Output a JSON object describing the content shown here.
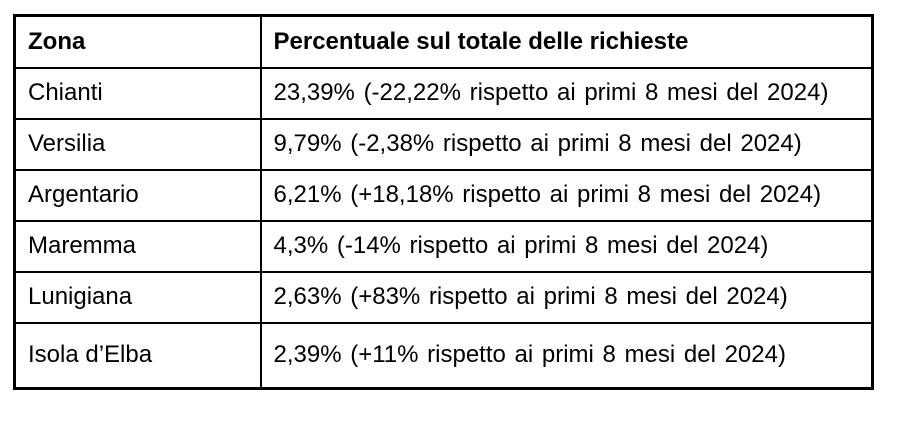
{
  "page": {
    "background": "#ffffff"
  },
  "table": {
    "colors": {
      "border": "#000000",
      "text": "#000000",
      "cell_background": "#ffffff"
    },
    "header": {
      "zona": "Zona",
      "percentuale": "Percentuale sul totale delle richieste"
    },
    "rows": [
      {
        "zona": "Chianti",
        "percentuale": "23,39% (-22,22% rispetto ai primi 8 mesi del 2024)"
      },
      {
        "zona": "Versilia",
        "percentuale": "9,79% (-2,38% rispetto ai primi 8 mesi del 2024)"
      },
      {
        "zona": "Argentario",
        "percentuale": "6,21% (+18,18% rispetto ai primi 8 mesi del 2024)"
      },
      {
        "zona": "Maremma",
        "percentuale": "4,3% (-14% rispetto ai primi 8 mesi del 2024)"
      },
      {
        "zona": "Lunigiana",
        "percentuale": "2,63% (+83% rispetto ai primi 8 mesi del 2024)"
      },
      {
        "zona": "Isola d’Elba",
        "percentuale": "2,39% (+11% rispetto ai primi 8 mesi del 2024)"
      }
    ]
  }
}
